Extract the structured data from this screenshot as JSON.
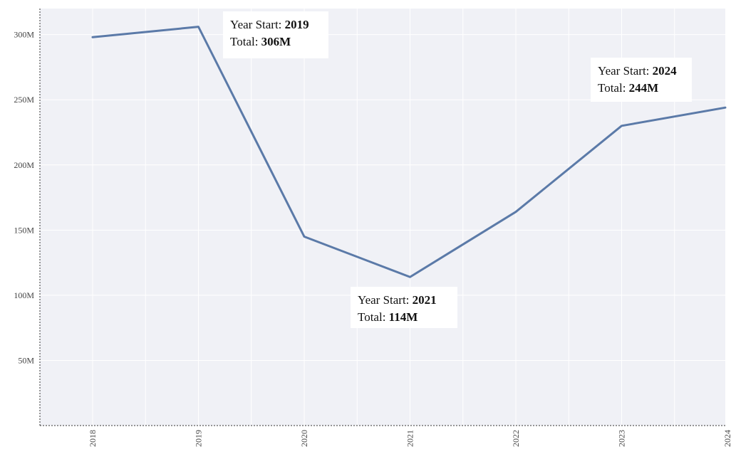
{
  "chart_data": {
    "type": "line",
    "x": [
      "2018",
      "2019",
      "2020",
      "2021",
      "2022",
      "2023",
      "2024"
    ],
    "y_tick_labels": [
      "50M",
      "100M",
      "150M",
      "200M",
      "250M",
      "300M"
    ],
    "y_tick_values": [
      50,
      100,
      150,
      200,
      250,
      300
    ],
    "series": [
      {
        "values": [
          298,
          306,
          145,
          114,
          164,
          230,
          244
        ]
      }
    ],
    "ylim": [
      0,
      320
    ],
    "grid": true,
    "colors": {
      "line": "#5b7aa8",
      "plot_background": "#f0f1f6",
      "grid": "#ffffff",
      "tooltip_background": "#ffffff"
    },
    "annotations": [
      {
        "year_index": 1,
        "label_prefix": "Year Start: ",
        "label_year": "2019",
        "total_prefix": "Total:  ",
        "total_value": "306M"
      },
      {
        "year_index": 3,
        "label_prefix": "Year Start: ",
        "label_year": "2021",
        "total_prefix": "Total:  ",
        "total_value": "114M"
      },
      {
        "year_index": 6,
        "label_prefix": "Year Start: ",
        "label_year": "2024",
        "total_prefix": "Total:  ",
        "total_value": "244M"
      }
    ]
  }
}
